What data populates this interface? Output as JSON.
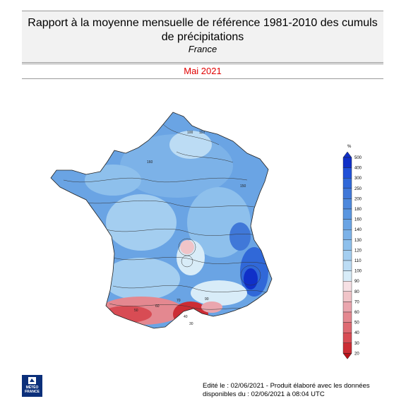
{
  "header": {
    "title_line1": "Rapport à la moyenne mensuelle de référence 1981-2010 des cumuls",
    "title_line2": "de précipitations",
    "region": "France"
  },
  "period": "Mai 2021",
  "legend": {
    "unit": "%",
    "levels": [
      "500",
      "400",
      "300",
      "250",
      "200",
      "180",
      "160",
      "140",
      "130",
      "120",
      "110",
      "100",
      "90",
      "80",
      "70",
      "60",
      "50",
      "40",
      "30",
      "20"
    ],
    "colors": [
      "#1030c8",
      "#2050d8",
      "#3068d8",
      "#4078d8",
      "#4d88dc",
      "#5a96e0",
      "#6aa4e4",
      "#7cb2e8",
      "#8ec0ec",
      "#a4cef0",
      "#bcdcf4",
      "#d8ecf8",
      "#f6e0e4",
      "#f0c4c8",
      "#eaa6ae",
      "#e48890",
      "#de6a72",
      "#d84c54",
      "#cc2c34",
      "#b81018"
    ]
  },
  "map": {
    "contour_labels": [
      "100",
      "110",
      "160",
      "150",
      "90",
      "70",
      "60",
      "50",
      "40",
      "30"
    ]
  },
  "footer": {
    "line1": "Edité le : 02/06/2021 - Produit élaboré avec les données",
    "line2": "disponibles du : 02/06/2021 à 08:04 UTC"
  },
  "logo": {
    "line1": "MÉTÉO",
    "line2": "FRANCE"
  },
  "colors": {
    "period_text": "#e00000",
    "header_bg": "#f2f2f2",
    "logo_bg": "#0b2f7a"
  }
}
